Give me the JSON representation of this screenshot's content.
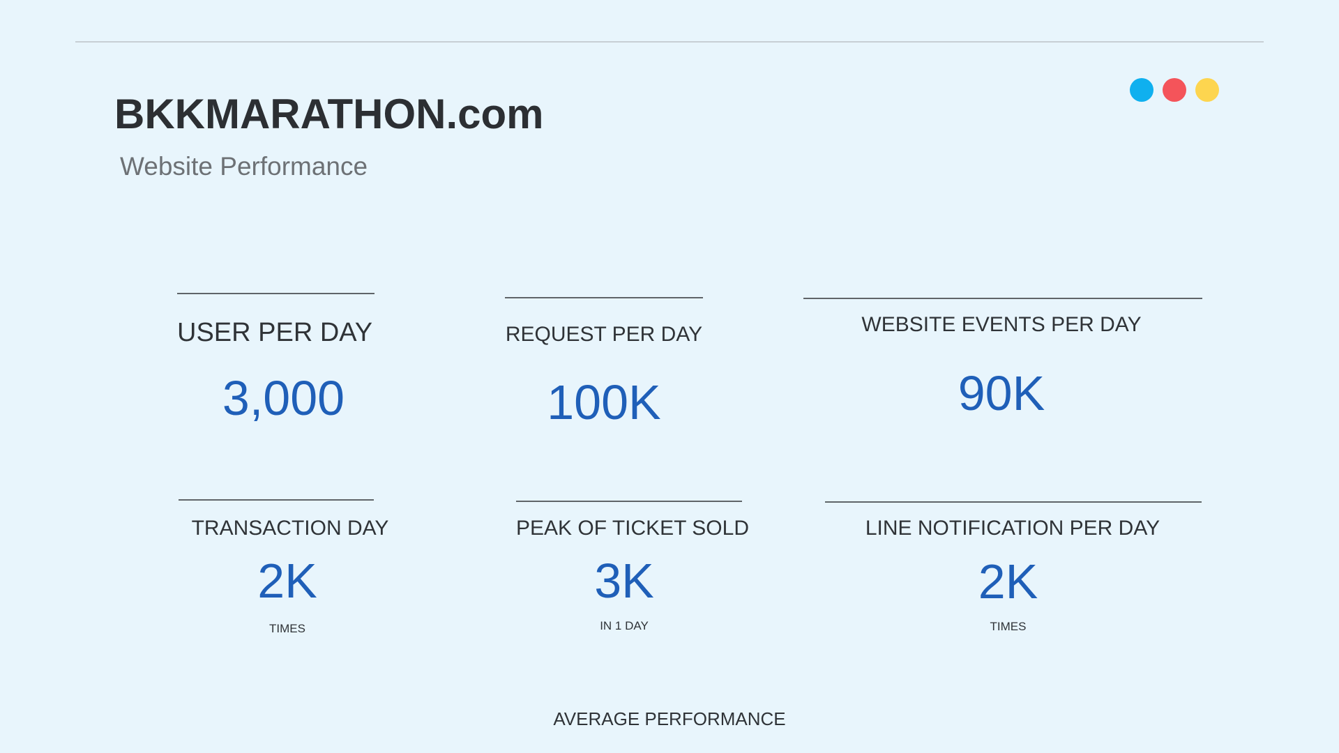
{
  "header": {
    "title": "BKKMARATHON.com",
    "subtitle": "Website Performance",
    "window_dots": [
      {
        "icon": "blue-dot-icon",
        "color": "#0fb0ef"
      },
      {
        "icon": "red-dot-icon",
        "color": "#f4545a"
      },
      {
        "icon": "yellow-dot-icon",
        "color": "#fdd54f"
      }
    ]
  },
  "stats": [
    {
      "label": "USER PER DAY",
      "value": "3,000",
      "note": ""
    },
    {
      "label": "REQUEST PER DAY",
      "value": "100K",
      "note": ""
    },
    {
      "label": "WEBSITE EVENTS PER DAY",
      "value": "90K",
      "note": ""
    },
    {
      "label": "TRANSACTION  DAY",
      "value": "2K",
      "note": "TIMES"
    },
    {
      "label": "PEAK OF TICKET SOLD",
      "value": "3K",
      "note": "IN 1 DAY"
    },
    {
      "label": "LINE NOTIFICATION PER DAY",
      "value": "2K",
      "note": "TIMES"
    }
  ],
  "footer": {
    "label": "AVERAGE PERFORMANCE"
  },
  "colors": {
    "background": "#e8f5fc",
    "value_text": "#1f5fb8",
    "label_text": "#2f3337"
  }
}
